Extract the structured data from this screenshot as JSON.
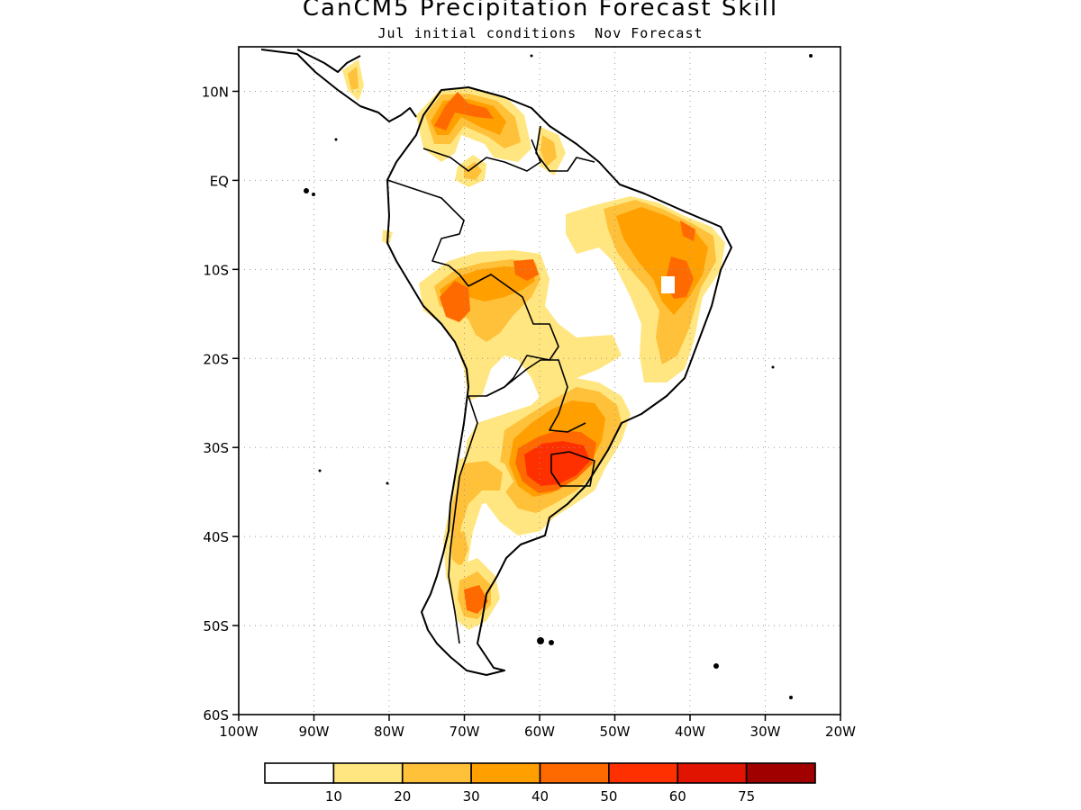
{
  "title": "CanCM5 Precipitation Forecast Skill",
  "subtitle": {
    "initial": "Jul initial conditions",
    "forecast": "Nov Forecast"
  },
  "axes": {
    "lat_labels": [
      "10N",
      "EQ",
      "10S",
      "20S",
      "30S",
      "40S",
      "50S",
      "60S"
    ],
    "lat_values": [
      10,
      0,
      -10,
      -20,
      -30,
      -40,
      -50,
      -60
    ],
    "lon_labels": [
      "100W",
      "90W",
      "80W",
      "70W",
      "60W",
      "50W",
      "40W",
      "30W",
      "20W"
    ],
    "lon_values": [
      -100,
      -90,
      -80,
      -70,
      -60,
      -50,
      -40,
      -30,
      -20
    ],
    "lon_range": [
      -100,
      -20
    ],
    "lat_range": [
      -60,
      15
    ],
    "grid": "dotted"
  },
  "colorbar": {
    "labels": [
      "10",
      "20",
      "30",
      "40",
      "50",
      "60",
      "75"
    ],
    "colors": [
      "#ffffff",
      "#ffe680",
      "#ffc03a",
      "#ff9f00",
      "#ff6a00",
      "#ff3000",
      "#e01400",
      "#a00000"
    ]
  }
}
